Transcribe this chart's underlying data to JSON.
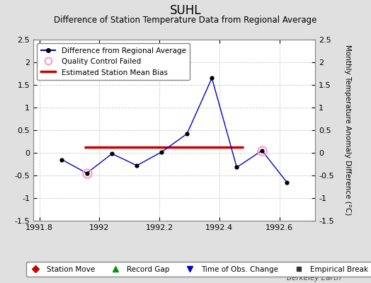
{
  "title": "SUHL",
  "subtitle": "Difference of Station Temperature Data from Regional Average",
  "ylabel_right": "Monthly Temperature Anomaly Difference (°C)",
  "background_color": "#e0e0e0",
  "plot_bg_color": "#ffffff",
  "x_data": [
    1991.875,
    1991.958,
    1992.042,
    1992.125,
    1992.208,
    1992.292,
    1992.375,
    1992.458,
    1992.542,
    1992.625
  ],
  "y_data": [
    -0.15,
    -0.45,
    -0.02,
    -0.28,
    0.02,
    0.42,
    1.65,
    -0.32,
    0.05,
    -0.65
  ],
  "qc_failed_indices": [
    1,
    8
  ],
  "line_color": "#0000cc",
  "marker_color": "#000000",
  "qc_color": "#ff99cc",
  "bias_line_y": 0.12,
  "bias_x_start": 1991.95,
  "bias_x_end": 1992.48,
  "bias_color": "#cc0000",
  "xlim": [
    1991.78,
    1992.72
  ],
  "ylim": [
    -1.5,
    2.5
  ],
  "yticks": [
    -1.5,
    -1.0,
    -0.5,
    0.0,
    0.5,
    1.0,
    1.5,
    2.0,
    2.5
  ],
  "xticks": [
    1991.8,
    1992.0,
    1992.2,
    1992.4,
    1992.6
  ],
  "xtick_labels": [
    "1991.8",
    "1992",
    "1992.2",
    "1992.4",
    "1992.6"
  ],
  "grid_color": "#cccccc",
  "watermark": "Berkeley Earth",
  "legend1_labels": [
    "Difference from Regional Average",
    "Quality Control Failed",
    "Estimated Station Mean Bias"
  ],
  "legend2_labels": [
    "Station Move",
    "Record Gap",
    "Time of Obs. Change",
    "Empirical Break"
  ]
}
